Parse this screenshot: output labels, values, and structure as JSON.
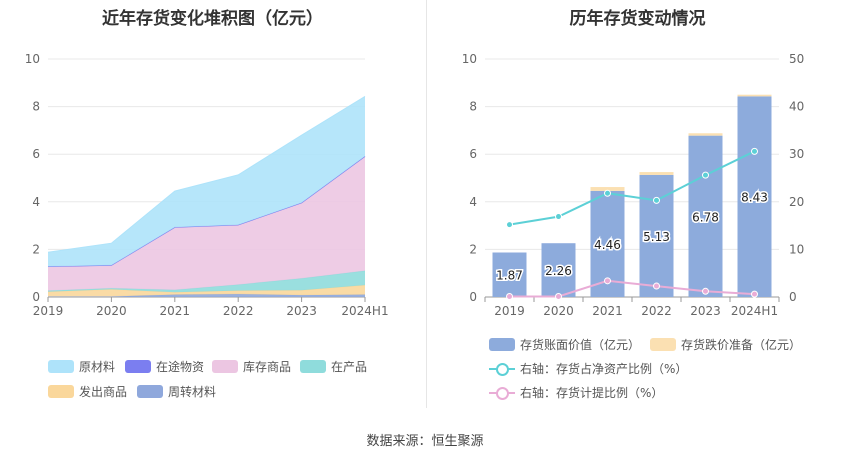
{
  "titles": {
    "left": "近年存货变化堆积图（亿元）",
    "right": "历年存货变动情况"
  },
  "source": "数据来源：恒生聚源",
  "chart_data": [
    {
      "type": "area",
      "title": "近年存货变化堆积图（亿元）",
      "stacked": true,
      "categories": [
        "2019",
        "2020",
        "2021",
        "2022",
        "2023",
        "2024H1"
      ],
      "ylim": [
        0,
        10
      ],
      "yticks": [
        0,
        2,
        4,
        6,
        8,
        10
      ],
      "grid": true,
      "legend_position": "bottom",
      "series": [
        {
          "name": "周转材料",
          "color": "#8fa8dc",
          "values": [
            0.02,
            0.02,
            0.1,
            0.12,
            0.08,
            0.1
          ]
        },
        {
          "name": "发出商品",
          "color": "#fad79b",
          "values": [
            0.2,
            0.3,
            0.1,
            0.15,
            0.2,
            0.4
          ]
        },
        {
          "name": "在产品",
          "color": "#8fdcdc",
          "values": [
            0.05,
            0.05,
            0.1,
            0.25,
            0.5,
            0.6
          ]
        },
        {
          "name": "库存商品",
          "color": "#ecc6e2",
          "values": [
            1.0,
            0.95,
            2.62,
            2.5,
            3.17,
            4.8
          ]
        },
        {
          "name": "在途物资",
          "color": "#7b7ef0",
          "values": [
            0.01,
            0.01,
            0.01,
            0.01,
            0.01,
            0.01
          ]
        },
        {
          "name": "原材料",
          "color": "#aee3fa",
          "values": [
            0.6,
            0.93,
            1.52,
            2.1,
            2.84,
            2.52
          ]
        }
      ]
    },
    {
      "type": "bar",
      "title": "历年存货变动情况",
      "categories": [
        "2019",
        "2020",
        "2021",
        "2022",
        "2023",
        "2024H1"
      ],
      "ylim": [
        0,
        10
      ],
      "yticks": [
        0,
        2,
        4,
        6,
        8,
        10
      ],
      "y2lim": [
        0,
        50
      ],
      "y2ticks": [
        0,
        10,
        20,
        30,
        40,
        50
      ],
      "grid": true,
      "legend_position": "bottom",
      "bars": [
        {
          "name": "存货账面价值（亿元）",
          "color": "#8dabdc",
          "values": [
            1.87,
            2.26,
            4.46,
            5.13,
            6.78,
            8.43
          ],
          "labels": [
            "1.87",
            "2.26",
            "4.46",
            "5.13",
            "6.78",
            "8.43"
          ]
        },
        {
          "name": "存货跌价准备（亿元）",
          "color": "#fbe0b2",
          "values": [
            0.0,
            0.0,
            0.16,
            0.12,
            0.1,
            0.07
          ]
        }
      ],
      "lines": [
        {
          "name": "右轴：存货占净资产比例（%）",
          "color": "#5cd0d6",
          "axis": "right",
          "values": [
            15.2,
            16.9,
            21.8,
            20.3,
            25.6,
            30.6
          ]
        },
        {
          "name": "右轴：存货计提比例（%）",
          "color": "#e9acd6",
          "axis": "right",
          "values": [
            0.1,
            0.1,
            3.4,
            2.3,
            1.2,
            0.6
          ]
        }
      ]
    }
  ]
}
